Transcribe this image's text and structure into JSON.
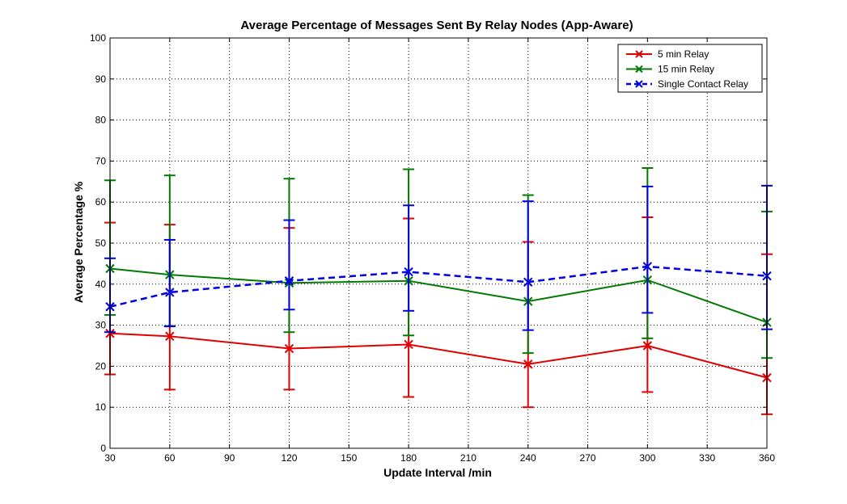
{
  "chart_data": {
    "type": "line",
    "title": "Average Percentage of Messages Sent By Relay Nodes (App-Aware)",
    "xlabel": "Update Interval /min",
    "ylabel": "Average Percentage %",
    "xlim": [
      30,
      360
    ],
    "ylim": [
      0,
      100
    ],
    "xticks": [
      30,
      60,
      90,
      120,
      150,
      180,
      210,
      240,
      270,
      300,
      330,
      360
    ],
    "yticks": [
      0,
      10,
      20,
      30,
      40,
      50,
      60,
      70,
      80,
      90,
      100
    ],
    "grid": true,
    "legend_position": "top-right",
    "x": [
      30,
      60,
      120,
      180,
      240,
      300,
      360
    ],
    "series": [
      {
        "name": "5  min Relay",
        "color": "#e00000",
        "line_style": "solid",
        "marker": "x",
        "values": [
          28.0,
          27.3,
          24.3,
          25.3,
          20.5,
          25.0,
          17.2
        ],
        "error_low": [
          18.0,
          14.3,
          14.3,
          12.5,
          10.0,
          13.7,
          8.3
        ],
        "error_high": [
          55.0,
          54.5,
          53.7,
          56.0,
          50.3,
          56.3,
          47.3
        ]
      },
      {
        "name": "15 min Relay",
        "color": "#007a00",
        "line_style": "solid",
        "marker": "x",
        "values": [
          43.8,
          42.3,
          40.3,
          40.8,
          35.8,
          41.0,
          30.7
        ],
        "error_low": [
          32.5,
          29.8,
          28.3,
          27.5,
          23.2,
          26.8,
          22.0
        ],
        "error_high": [
          65.3,
          66.5,
          65.7,
          68.0,
          61.7,
          68.3,
          57.7
        ]
      },
      {
        "name": "Single Contact Relay",
        "color": "#0000e0",
        "line_style": "dashed",
        "marker": "x",
        "values": [
          34.5,
          38.0,
          40.8,
          43.0,
          40.5,
          44.3,
          42.0
        ],
        "error_low": [
          28.3,
          29.7,
          33.8,
          33.5,
          28.8,
          33.0,
          29.0
        ],
        "error_high": [
          46.3,
          50.8,
          55.6,
          59.2,
          60.2,
          63.8,
          64.0
        ]
      }
    ]
  }
}
